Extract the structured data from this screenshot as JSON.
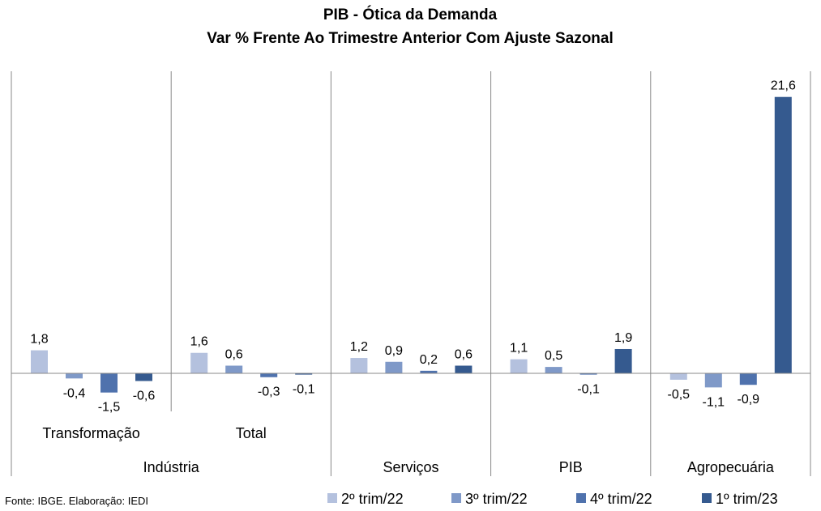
{
  "chart_data": {
    "type": "bar",
    "title": "PIB - Ótica da Demanda",
    "subtitle": "Var % Frente Ao Trimestre Anterior Com Ajuste Sazonal",
    "groups": [
      {
        "label": "Indústria",
        "subcategories": [
          "Transformação",
          "Total"
        ]
      },
      {
        "label": "Serviços",
        "subcategories": [
          ""
        ]
      },
      {
        "label": "PIB",
        "subcategories": [
          ""
        ]
      },
      {
        "label": "Agropecuária",
        "subcategories": [
          ""
        ]
      }
    ],
    "categories": [
      "Transformação",
      "Total",
      "Serviços",
      "PIB",
      "Agropecuária"
    ],
    "series": [
      {
        "name": "2º trim/22",
        "color": "#b4c1de",
        "values": [
          1.8,
          1.6,
          1.2,
          1.1,
          -0.5
        ],
        "labels": [
          "1,8",
          "1,6",
          "1,2",
          "1,1",
          "-0,5"
        ]
      },
      {
        "name": "3º trim/22",
        "color": "#7f99c8",
        "values": [
          -0.4,
          0.6,
          0.9,
          0.5,
          -1.1
        ],
        "labels": [
          "-0,4",
          "0,6",
          "0,9",
          "0,5",
          "-1,1"
        ]
      },
      {
        "name": "4º trim/22",
        "color": "#4f72ad",
        "values": [
          -1.5,
          -0.3,
          0.2,
          -0.1,
          -0.9
        ],
        "labels": [
          "-1,5",
          "-0,3",
          "0,2",
          "-0,1",
          "-0,9"
        ]
      },
      {
        "name": "1º trim/23",
        "color": "#355a8f",
        "values": [
          -0.6,
          -0.1,
          0.6,
          1.9,
          21.6
        ],
        "labels": [
          "-0,6",
          "-0,1",
          "0,6",
          "1,9",
          "21,6"
        ]
      }
    ],
    "legend_position": "bottom-right",
    "grid": false,
    "source": "Fonte: IBGE. Elaboração: IEDI"
  }
}
